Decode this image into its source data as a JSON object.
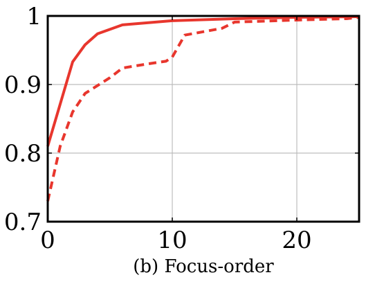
{
  "chart_data": {
    "type": "line",
    "title": "(b) Focus-order",
    "xlabel": "",
    "ylabel": "",
    "xlim": [
      0,
      25
    ],
    "ylim": [
      0.7,
      1.0
    ],
    "x_ticks": [
      0,
      10,
      20
    ],
    "x_tick_labels": [
      "0",
      "10",
      "20"
    ],
    "y_ticks": [
      0.7,
      0.8,
      0.9,
      1.0
    ],
    "y_tick_labels": [
      "0.7",
      "0.8",
      "0.9",
      "1"
    ],
    "grid": true,
    "series": [
      {
        "color": "#e8362d",
        "dash": "solid",
        "points": [
          [
            0,
            0.81
          ],
          [
            2,
            0.933
          ],
          [
            3,
            0.958
          ],
          [
            4,
            0.974
          ],
          [
            6,
            0.987
          ],
          [
            8,
            0.99
          ],
          [
            10,
            0.993
          ],
          [
            15,
            0.996
          ],
          [
            20,
            0.998
          ],
          [
            25,
            0.999
          ]
        ]
      },
      {
        "color": "#e8362d",
        "dash": "dashed",
        "points": [
          [
            0,
            0.73
          ],
          [
            1,
            0.81
          ],
          [
            2,
            0.86
          ],
          [
            3,
            0.887
          ],
          [
            5,
            0.91
          ],
          [
            6,
            0.924
          ],
          [
            8,
            0.93
          ],
          [
            9.5,
            0.934
          ],
          [
            10,
            0.94
          ],
          [
            11,
            0.972
          ],
          [
            14,
            0.982
          ],
          [
            15,
            0.991
          ],
          [
            20,
            0.994
          ],
          [
            24,
            0.996
          ],
          [
            25,
            0.998
          ]
        ]
      }
    ]
  }
}
